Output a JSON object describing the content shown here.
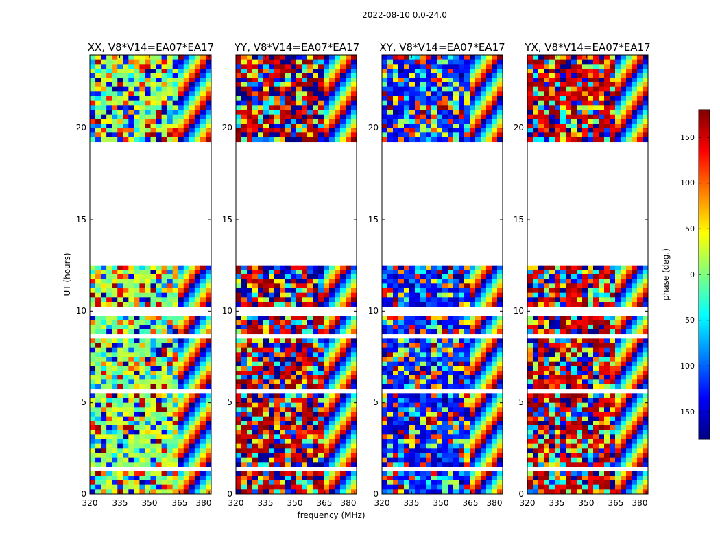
{
  "figure": {
    "title": "2022-08-10 0.0-24.0"
  },
  "chart_data": [
    {
      "type": "heatmap",
      "title": "XX, V8*V14=EA07*EA17",
      "xlabel": "",
      "ylabel": "UT (hours)",
      "xlim": [
        320,
        381
      ],
      "ylim": [
        0,
        24
      ],
      "xticks": [
        320,
        335,
        350,
        365,
        380
      ],
      "yticks": [
        0,
        5,
        10,
        15,
        20
      ],
      "data_gaps_hours": [
        [
          12.5,
          19.3
        ]
      ],
      "dominant_phase_deg": 10
    },
    {
      "type": "heatmap",
      "title": "YY, V8*V14=EA07*EA17",
      "xlabel": "frequency (MHz)",
      "ylabel": "",
      "xlim": [
        320,
        381
      ],
      "ylim": [
        0,
        24
      ],
      "xticks": [
        320,
        335,
        350,
        365,
        380
      ],
      "yticks": [
        0,
        5,
        10,
        15,
        20
      ],
      "data_gaps_hours": [
        [
          12.5,
          19.3
        ]
      ],
      "dominant_phase_deg": 165
    },
    {
      "type": "heatmap",
      "title": "XY, V8*V14=EA07*EA17",
      "xlabel": "",
      "ylabel": "",
      "xlim": [
        320,
        381
      ],
      "ylim": [
        0,
        24
      ],
      "xticks": [
        320,
        335,
        350,
        365,
        380
      ],
      "yticks": [
        0,
        5,
        10,
        15,
        20
      ],
      "data_gaps_hours": [
        [
          12.5,
          19.3
        ]
      ],
      "dominant_phase_deg": -130
    },
    {
      "type": "heatmap",
      "title": "YX, V8*V14=EA07*EA17",
      "xlabel": "",
      "ylabel": "",
      "xlim": [
        320,
        381
      ],
      "ylim": [
        0,
        24
      ],
      "xticks": [
        320,
        335,
        350,
        365,
        380
      ],
      "yticks": [
        0,
        5,
        10,
        15,
        20
      ],
      "data_gaps_hours": [
        [
          12.5,
          19.3
        ]
      ],
      "dominant_phase_deg": 160
    }
  ],
  "colorbar": {
    "label": "phase (deg.)",
    "vmin": -180,
    "vmax": 180,
    "ticks": [
      -150,
      -100,
      -50,
      0,
      50,
      100,
      150
    ],
    "tick_labels": [
      "−150",
      "−100",
      "−50",
      "0",
      "50",
      "100",
      "150"
    ],
    "colormap": [
      "#00007f",
      "#0000ff",
      "#007fff",
      "#00ffff",
      "#7fff7f",
      "#ffff00",
      "#ff7f00",
      "#ff0000",
      "#7f0000"
    ]
  }
}
